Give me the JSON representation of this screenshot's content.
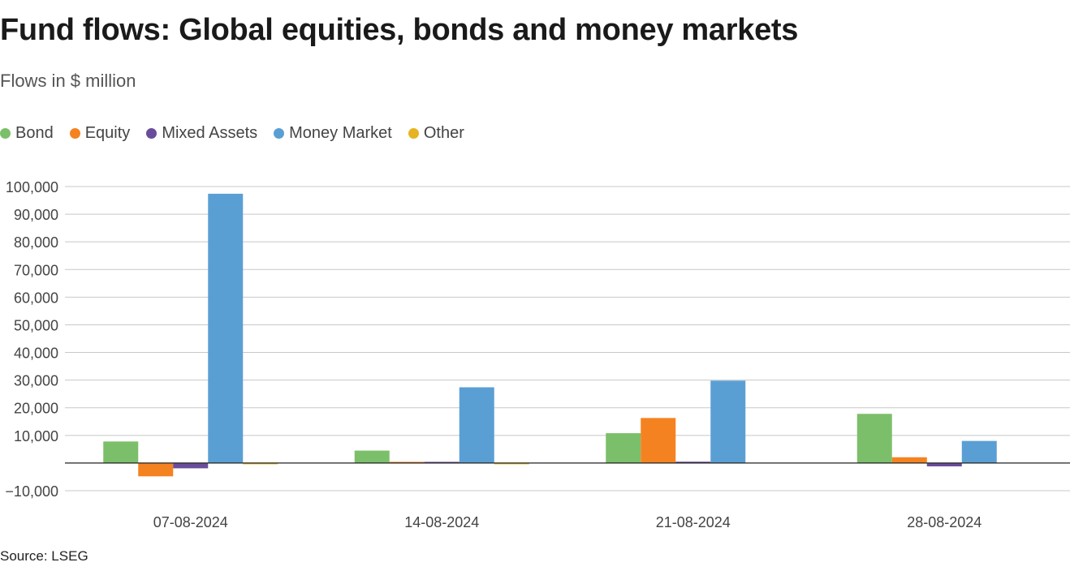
{
  "header": {
    "title": "Fund flows: Global equities, bonds and money markets",
    "subtitle": "Flows in $ million"
  },
  "footer": {
    "source": "Source: LSEG"
  },
  "chart_data": {
    "type": "bar",
    "title": "Fund flows: Global equities, bonds and money markets",
    "subtitle": "Flows in $ million",
    "xlabel": "",
    "ylabel": "",
    "categories": [
      "07-08-2024",
      "14-08-2024",
      "21-08-2024",
      "28-08-2024"
    ],
    "series": [
      {
        "name": "Bond",
        "color": "#7cbf6a",
        "values": [
          7800,
          4500,
          10800,
          17800
        ]
      },
      {
        "name": "Equity",
        "color": "#f58220",
        "values": [
          -4800,
          300,
          16300,
          2100
        ]
      },
      {
        "name": "Mixed Assets",
        "color": "#6a4c9c",
        "values": [
          -1900,
          300,
          500,
          -1200
        ]
      },
      {
        "name": "Money Market",
        "color": "#5a9fd4",
        "values": [
          97400,
          27400,
          29800,
          8000
        ]
      },
      {
        "name": "Other",
        "color": "#e6b422",
        "values": [
          -300,
          -200,
          0,
          0
        ]
      }
    ],
    "ylim": [
      -10000,
      100000
    ],
    "yticks": [
      100000,
      90000,
      80000,
      70000,
      60000,
      50000,
      40000,
      30000,
      20000,
      10000,
      -10000
    ],
    "ytick_labels": [
      "100,000",
      "90,000",
      "80,000",
      "70,000",
      "60,000",
      "50,000",
      "40,000",
      "30,000",
      "20,000",
      "10,000",
      "−10,000"
    ],
    "grid": true,
    "legend_position": "top-left"
  }
}
